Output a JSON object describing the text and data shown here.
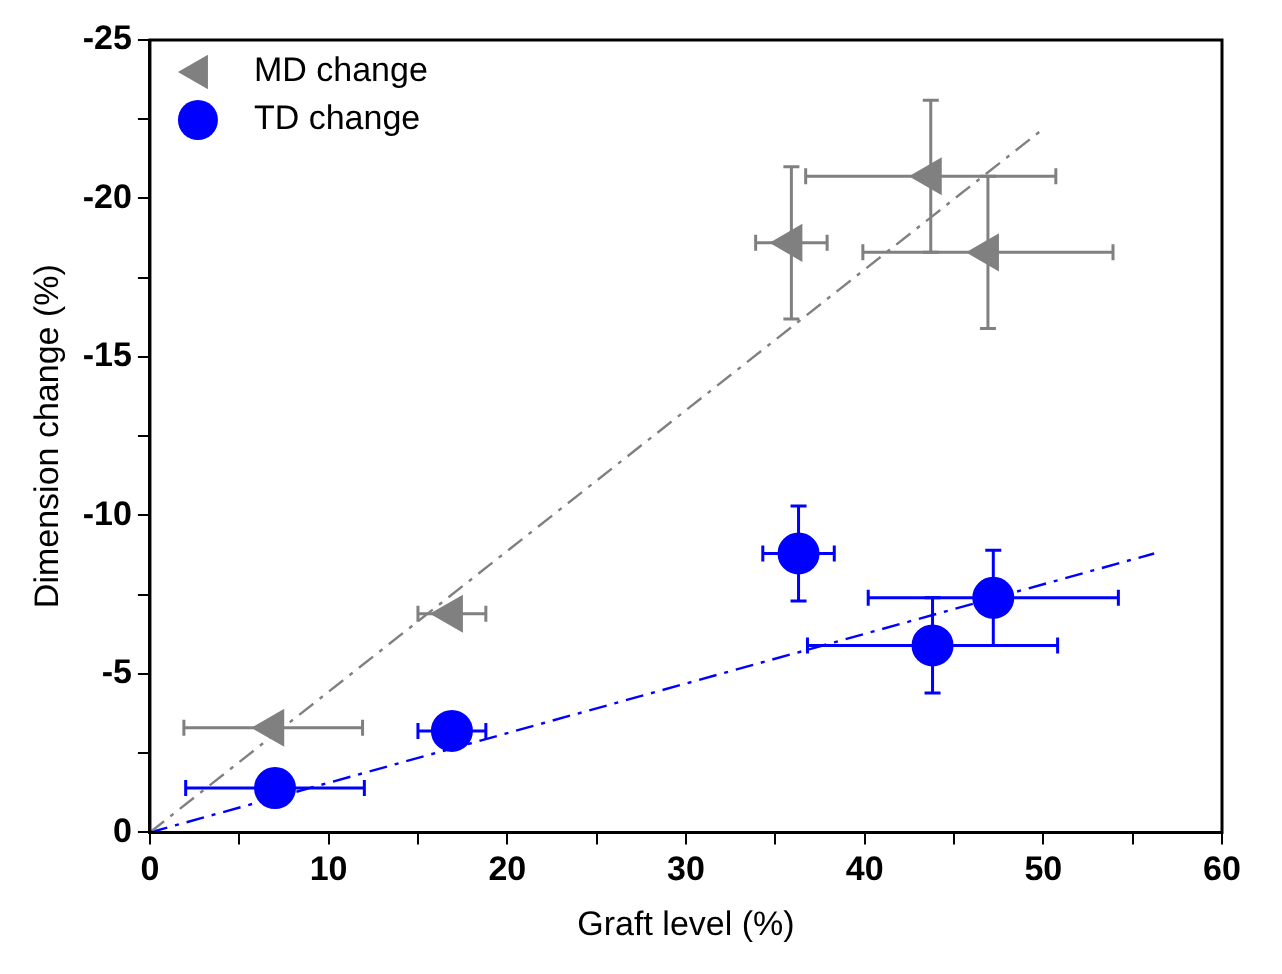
{
  "chart_data": {
    "type": "scatter",
    "xlabel": "Graft level (%)",
    "ylabel": "Dimension change (%)",
    "xlim": [
      0,
      60
    ],
    "xticks": [
      0,
      {
        "value": 5,
        "label": null
      },
      10,
      {
        "value": 15,
        "label": null
      },
      20,
      {
        "value": 25,
        "label": null
      },
      30,
      {
        "value": 35,
        "label": null
      },
      40,
      {
        "value": 45,
        "label": null
      },
      50,
      {
        "value": 55,
        "label": null
      },
      60
    ],
    "ylim": [
      0,
      -25
    ],
    "yticks": [
      0,
      {
        "value": -2.5,
        "label": null
      },
      -5,
      {
        "value": -7.5,
        "label": null
      },
      -10,
      {
        "value": -12.5,
        "label": null
      },
      -15,
      {
        "value": -17.5,
        "label": null
      },
      -20,
      {
        "value": -22.5,
        "label": null
      },
      -25
    ],
    "grid": false,
    "legend": "top left",
    "series": [
      {
        "name": "MD change",
        "color": "#808080",
        "marker": "triangle",
        "x": [
          6.9,
          16.9,
          35.9,
          43.7,
          46.9
        ],
        "values": [
          -3.3,
          -6.9,
          -18.6,
          -20.7,
          -18.3
        ],
        "errors": [
          null,
          null,
          2.4,
          2.4,
          2.4
        ],
        "xerrors": [
          5,
          1.9,
          2,
          7,
          7
        ]
      },
      {
        "name": "TD change",
        "color": "#0000ff",
        "marker": "circle",
        "x": [
          7.0,
          16.9,
          36.3,
          43.8,
          47.2
        ],
        "values": [
          -1.4,
          -3.2,
          -8.8,
          -5.9,
          -7.4
        ],
        "errors": [
          null,
          null,
          1.5,
          1.5,
          1.5
        ],
        "xerrors": [
          5,
          1.9,
          2,
          7,
          7
        ]
      },
      {
        "type": "line",
        "color": "#808080",
        "marker": "none",
        "line_style": "dashed",
        "x": [
          0,
          50
        ],
        "values": [
          0,
          -22.2
        ]
      },
      {
        "type": "line",
        "color": "#0000ff",
        "marker": "none",
        "line_style": "dashed",
        "x": [
          0,
          56.2
        ],
        "values": [
          0,
          -8.8
        ]
      }
    ]
  }
}
